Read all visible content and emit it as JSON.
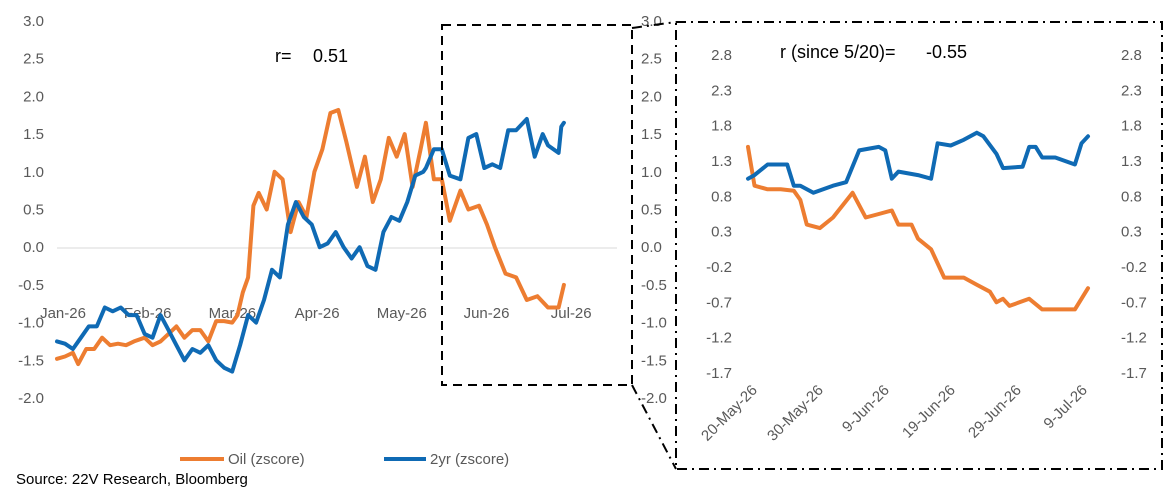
{
  "source": "Source: 22V Research, Bloomberg",
  "chart_data": [
    {
      "type": "line",
      "annotation_label": "r=",
      "annotation_value": "0.51",
      "x_ticks": [
        "Jan-26",
        "Feb-26",
        "Mar-26",
        "Apr-26",
        "May-26",
        "Jun-26",
        "Jul-26"
      ],
      "y_ticks": [
        "3.0",
        "2.5",
        "2.0",
        "1.5",
        "1.0",
        "0.5",
        "0.0",
        "-0.5",
        "-1.0",
        "-1.5",
        "-2.0"
      ],
      "y_ticks_right": [
        "3.0",
        "2.5",
        "2.0",
        "1.5",
        "1.0",
        "0.5",
        "0.0",
        "-0.5",
        "-1.0",
        "-1.5",
        "-2.0"
      ],
      "ylim": [
        -2.0,
        3.0
      ],
      "xlim": [
        "2026-01-01",
        "2026-07-31"
      ],
      "grid": false,
      "legend_position": "bottom",
      "series": [
        {
          "name": "Oil (zscore)",
          "color": "#ED7D31",
          "points": [
            [
              "2026-01-01",
              -1.48
            ],
            [
              "2026-01-04",
              -1.45
            ],
            [
              "2026-01-07",
              -1.4
            ],
            [
              "2026-01-09",
              -1.55
            ],
            [
              "2026-01-12",
              -1.35
            ],
            [
              "2026-01-15",
              -1.35
            ],
            [
              "2026-01-18",
              -1.2
            ],
            [
              "2026-01-21",
              -1.3
            ],
            [
              "2026-01-24",
              -1.28
            ],
            [
              "2026-01-27",
              -1.3
            ],
            [
              "2026-01-30",
              -1.25
            ],
            [
              "2026-02-03",
              -1.2
            ],
            [
              "2026-02-06",
              -1.3
            ],
            [
              "2026-02-09",
              -1.25
            ],
            [
              "2026-02-12",
              -1.15
            ],
            [
              "2026-02-15",
              -1.05
            ],
            [
              "2026-02-18",
              -1.2
            ],
            [
              "2026-02-21",
              -1.1
            ],
            [
              "2026-02-24",
              -1.1
            ],
            [
              "2026-02-27",
              -1.25
            ],
            [
              "2026-03-02",
              -0.98
            ],
            [
              "2026-03-05",
              -0.98
            ],
            [
              "2026-03-08",
              -1.0
            ],
            [
              "2026-03-10",
              -0.9
            ],
            [
              "2026-03-12",
              -0.6
            ],
            [
              "2026-03-14",
              -0.4
            ],
            [
              "2026-03-16",
              0.55
            ],
            [
              "2026-03-18",
              0.72
            ],
            [
              "2026-03-21",
              0.5
            ],
            [
              "2026-03-24",
              1.0
            ],
            [
              "2026-03-27",
              0.9
            ],
            [
              "2026-03-30",
              0.2
            ],
            [
              "2026-04-02",
              0.6
            ],
            [
              "2026-04-05",
              0.4
            ],
            [
              "2026-04-08",
              1.0
            ],
            [
              "2026-04-11",
              1.3
            ],
            [
              "2026-04-14",
              1.78
            ],
            [
              "2026-04-17",
              1.82
            ],
            [
              "2026-04-20",
              1.4
            ],
            [
              "2026-04-22",
              1.1
            ],
            [
              "2026-04-24",
              0.8
            ],
            [
              "2026-04-27",
              1.2
            ],
            [
              "2026-04-30",
              0.6
            ],
            [
              "2026-05-03",
              0.9
            ],
            [
              "2026-05-06",
              1.45
            ],
            [
              "2026-05-09",
              1.2
            ],
            [
              "2026-05-12",
              1.5
            ],
            [
              "2026-05-15",
              0.8
            ],
            [
              "2026-05-18",
              1.3
            ],
            [
              "2026-05-20",
              1.65
            ],
            [
              "2026-05-23",
              0.9
            ],
            [
              "2026-05-26",
              0.9
            ],
            [
              "2026-05-29",
              0.35
            ],
            [
              "2026-06-02",
              0.75
            ],
            [
              "2026-06-05",
              0.5
            ],
            [
              "2026-06-09",
              0.55
            ],
            [
              "2026-06-12",
              0.3
            ],
            [
              "2026-06-15",
              0.0
            ],
            [
              "2026-06-19",
              -0.35
            ],
            [
              "2026-06-23",
              -0.4
            ],
            [
              "2026-06-27",
              -0.7
            ],
            [
              "2026-07-01",
              -0.65
            ],
            [
              "2026-07-05",
              -0.8
            ],
            [
              "2026-07-09",
              -0.8
            ],
            [
              "2026-07-11",
              -0.5
            ]
          ]
        },
        {
          "name": "2yr (zscore)",
          "color": "#0F6AB4",
          "points": [
            [
              "2026-01-01",
              -1.25
            ],
            [
              "2026-01-04",
              -1.28
            ],
            [
              "2026-01-07",
              -1.35
            ],
            [
              "2026-01-10",
              -1.2
            ],
            [
              "2026-01-13",
              -1.05
            ],
            [
              "2026-01-16",
              -1.05
            ],
            [
              "2026-01-19",
              -0.8
            ],
            [
              "2026-01-22",
              -0.85
            ],
            [
              "2026-01-25",
              -0.8
            ],
            [
              "2026-01-28",
              -0.9
            ],
            [
              "2026-01-31",
              -0.9
            ],
            [
              "2026-02-03",
              -1.15
            ],
            [
              "2026-02-06",
              -1.2
            ],
            [
              "2026-02-09",
              -0.9
            ],
            [
              "2026-02-12",
              -1.1
            ],
            [
              "2026-02-15",
              -1.3
            ],
            [
              "2026-02-18",
              -1.5
            ],
            [
              "2026-02-21",
              -1.35
            ],
            [
              "2026-02-24",
              -1.4
            ],
            [
              "2026-02-27",
              -1.3
            ],
            [
              "2026-03-02",
              -1.5
            ],
            [
              "2026-03-05",
              -1.6
            ],
            [
              "2026-03-08",
              -1.65
            ],
            [
              "2026-03-11",
              -1.3
            ],
            [
              "2026-03-14",
              -0.9
            ],
            [
              "2026-03-17",
              -1.0
            ],
            [
              "2026-03-20",
              -0.7
            ],
            [
              "2026-03-23",
              -0.3
            ],
            [
              "2026-03-26",
              -0.4
            ],
            [
              "2026-03-29",
              0.3
            ],
            [
              "2026-04-01",
              0.6
            ],
            [
              "2026-04-04",
              0.4
            ],
            [
              "2026-04-07",
              0.3
            ],
            [
              "2026-04-10",
              0.0
            ],
            [
              "2026-04-13",
              0.05
            ],
            [
              "2026-04-16",
              0.2
            ],
            [
              "2026-04-19",
              0.0
            ],
            [
              "2026-04-22",
              -0.15
            ],
            [
              "2026-04-25",
              0.0
            ],
            [
              "2026-04-28",
              -0.25
            ],
            [
              "2026-05-01",
              -0.3
            ],
            [
              "2026-05-04",
              0.2
            ],
            [
              "2026-05-07",
              0.4
            ],
            [
              "2026-05-10",
              0.35
            ],
            [
              "2026-05-13",
              0.6
            ],
            [
              "2026-05-16",
              0.95
            ],
            [
              "2026-05-19",
              1.0
            ],
            [
              "2026-05-20",
              1.05
            ],
            [
              "2026-05-23",
              1.3
            ],
            [
              "2026-05-26",
              1.3
            ],
            [
              "2026-05-29",
              0.95
            ],
            [
              "2026-06-02",
              0.9
            ],
            [
              "2026-06-05",
              1.45
            ],
            [
              "2026-06-08",
              1.5
            ],
            [
              "2026-06-11",
              1.05
            ],
            [
              "2026-06-14",
              1.1
            ],
            [
              "2026-06-17",
              1.05
            ],
            [
              "2026-06-20",
              1.55
            ],
            [
              "2026-06-23",
              1.55
            ],
            [
              "2026-06-27",
              1.7
            ],
            [
              "2026-06-30",
              1.2
            ],
            [
              "2026-07-03",
              1.5
            ],
            [
              "2026-07-05",
              1.35
            ],
            [
              "2026-07-09",
              1.25
            ],
            [
              "2026-07-10",
              1.6
            ],
            [
              "2026-07-11",
              1.65
            ]
          ]
        }
      ]
    },
    {
      "type": "line",
      "annotation_label": "r (since 5/20)=",
      "annotation_value": "-0.55",
      "x_ticks": [
        "20-May-26",
        "30-May-26",
        "9-Jun-26",
        "19-Jun-26",
        "29-Jun-26",
        "9-Jul-26"
      ],
      "y_ticks": [
        "2.8",
        "2.3",
        "1.8",
        "1.3",
        "0.8",
        "0.3",
        "-0.2",
        "-0.7",
        "-1.2",
        "-1.7"
      ],
      "y_ticks_right": [
        "2.8",
        "2.3",
        "1.8",
        "1.3",
        "0.8",
        "0.3",
        "-0.2",
        "-0.7",
        "-1.2",
        "-1.7"
      ],
      "ylim": [
        -1.7,
        2.8
      ],
      "xlim": [
        "2026-05-20",
        "2026-07-11"
      ],
      "grid": false,
      "series": [
        {
          "name": "Oil (zscore)",
          "color": "#ED7D31",
          "points": [
            [
              "2026-05-20",
              1.5
            ],
            [
              "2026-05-21",
              0.95
            ],
            [
              "2026-05-23",
              0.9
            ],
            [
              "2026-05-25",
              0.9
            ],
            [
              "2026-05-27",
              0.88
            ],
            [
              "2026-05-28",
              0.75
            ],
            [
              "2026-05-29",
              0.4
            ],
            [
              "2026-05-31",
              0.35
            ],
            [
              "2026-06-02",
              0.5
            ],
            [
              "2026-06-05",
              0.85
            ],
            [
              "2026-06-07",
              0.5
            ],
            [
              "2026-06-09",
              0.55
            ],
            [
              "2026-06-11",
              0.6
            ],
            [
              "2026-06-12",
              0.4
            ],
            [
              "2026-06-14",
              0.4
            ],
            [
              "2026-06-15",
              0.2
            ],
            [
              "2026-06-17",
              0.05
            ],
            [
              "2026-06-19",
              -0.35
            ],
            [
              "2026-06-22",
              -0.35
            ],
            [
              "2026-06-24",
              -0.45
            ],
            [
              "2026-06-26",
              -0.55
            ],
            [
              "2026-06-27",
              -0.7
            ],
            [
              "2026-06-28",
              -0.65
            ],
            [
              "2026-06-29",
              -0.75
            ],
            [
              "2026-07-02",
              -0.65
            ],
            [
              "2026-07-04",
              -0.8
            ],
            [
              "2026-07-07",
              -0.8
            ],
            [
              "2026-07-09",
              -0.8
            ],
            [
              "2026-07-11",
              -0.5
            ]
          ]
        },
        {
          "name": "2yr (zscore)",
          "color": "#0F6AB4",
          "points": [
            [
              "2026-05-20",
              1.05
            ],
            [
              "2026-05-21",
              1.1
            ],
            [
              "2026-05-23",
              1.25
            ],
            [
              "2026-05-26",
              1.25
            ],
            [
              "2026-05-27",
              0.95
            ],
            [
              "2026-05-28",
              0.95
            ],
            [
              "2026-05-30",
              0.85
            ],
            [
              "2026-06-02",
              0.95
            ],
            [
              "2026-06-04",
              1.0
            ],
            [
              "2026-06-06",
              1.45
            ],
            [
              "2026-06-09",
              1.5
            ],
            [
              "2026-06-10",
              1.45
            ],
            [
              "2026-06-11",
              1.05
            ],
            [
              "2026-06-12",
              1.15
            ],
            [
              "2026-06-15",
              1.1
            ],
            [
              "2026-06-17",
              1.05
            ],
            [
              "2026-06-18",
              1.55
            ],
            [
              "2026-06-20",
              1.52
            ],
            [
              "2026-06-22",
              1.6
            ],
            [
              "2026-06-24",
              1.7
            ],
            [
              "2026-06-25",
              1.65
            ],
            [
              "2026-06-27",
              1.4
            ],
            [
              "2026-06-28",
              1.2
            ],
            [
              "2026-07-01",
              1.22
            ],
            [
              "2026-07-02",
              1.5
            ],
            [
              "2026-07-03",
              1.5
            ],
            [
              "2026-07-04",
              1.35
            ],
            [
              "2026-07-06",
              1.35
            ],
            [
              "2026-07-09",
              1.25
            ],
            [
              "2026-07-10",
              1.55
            ],
            [
              "2026-07-11",
              1.65
            ]
          ]
        }
      ]
    }
  ]
}
